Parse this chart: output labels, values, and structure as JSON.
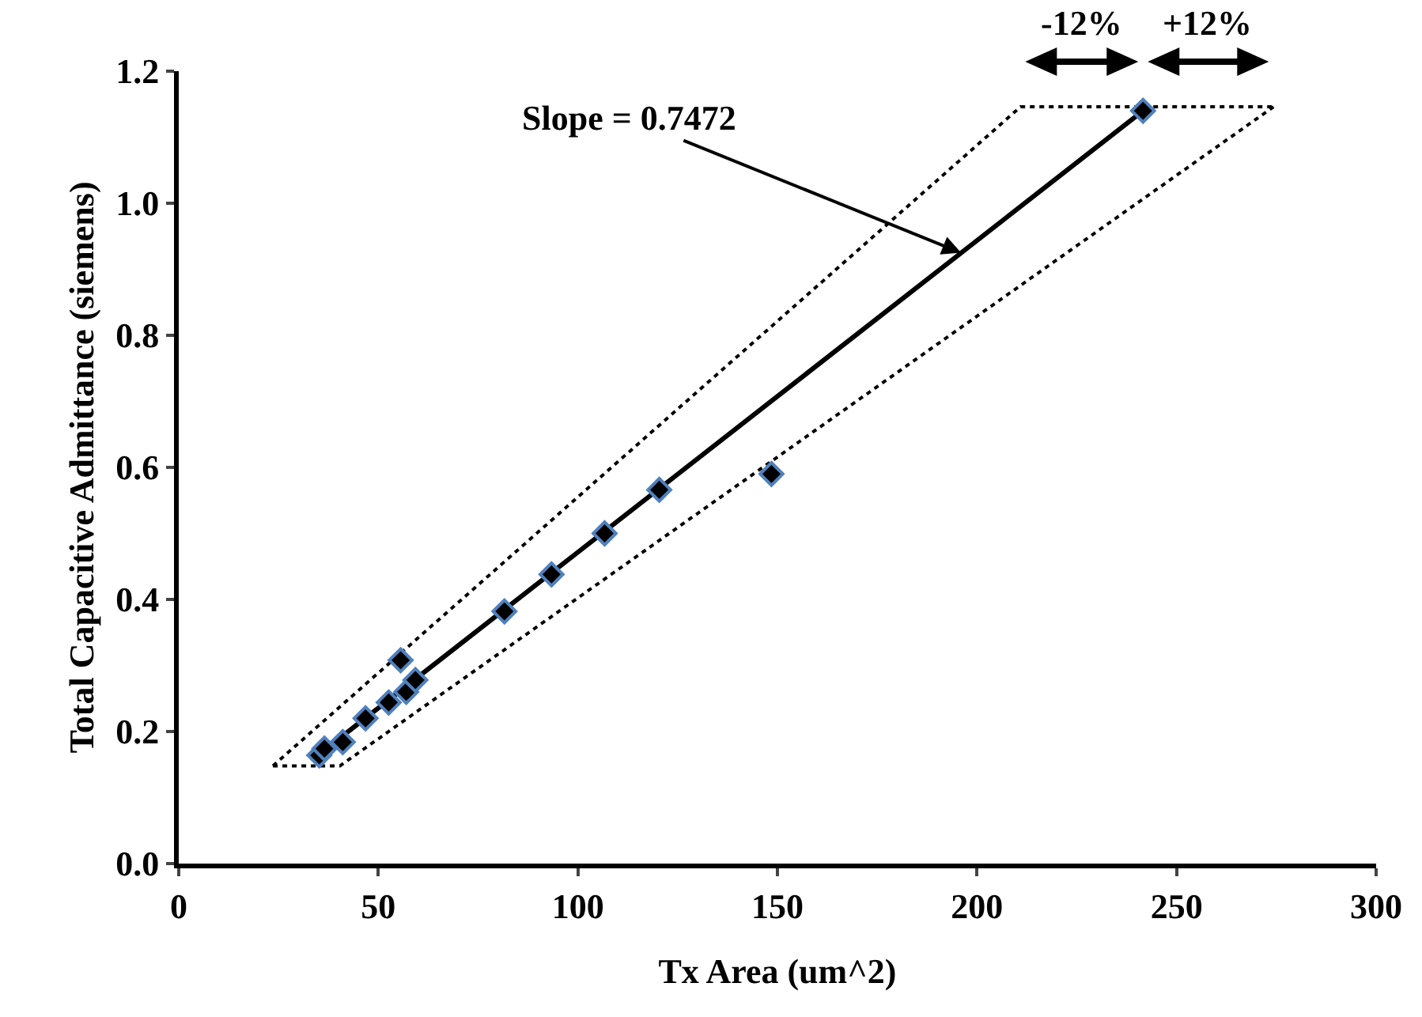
{
  "chart_data": {
    "type": "scatter",
    "xlabel": "Tx Area (um^2)",
    "ylabel": "Total Capacitive Admittance (siemens)",
    "xlim": [
      0,
      300
    ],
    "xticks": [
      0,
      50,
      100,
      150,
      200,
      250,
      300
    ],
    "ylim": [
      0,
      1.2
    ],
    "yticks": [
      {
        "value": 0,
        "label": "0.0"
      },
      {
        "value": 0.2,
        "label": "0.2"
      },
      {
        "value": 0.4,
        "label": "0.4"
      },
      {
        "value": 0.6,
        "label": "0.6"
      },
      {
        "value": 0.8,
        "label": "0.8"
      },
      {
        "value": 1.0,
        "label": "1.0"
      },
      {
        "value": 1.2,
        "label": "1.2"
      }
    ],
    "grid": false,
    "marker": "diamond",
    "series": [
      {
        "type": "line",
        "color": "#000000",
        "line_style": "dotted",
        "marker": "none",
        "x": [
          23.6,
          210.9,
          274.3
        ],
        "values": [
          0.148,
          1.146,
          1.146
        ]
      },
      {
        "type": "line",
        "color": "#000000",
        "line_style": "dotted",
        "marker": "none",
        "x": [
          23.6,
          40.4,
          274.3
        ],
        "values": [
          0.148,
          0.148,
          1.146
        ]
      },
      {
        "type": "line",
        "color": "#000000",
        "line_style": "solid",
        "marker": "none",
        "x": [
          34,
          241.6
        ],
        "values": [
          0.16,
          1.14
        ]
      },
      {
        "color": "#000000",
        "x": [
          35.2,
          36.5,
          41.1,
          46.8,
          52.6,
          55.6,
          57,
          59.3,
          81.6,
          93.4,
          106.7,
          120.4,
          148.5,
          241.6
        ],
        "values": [
          0.164,
          0.174,
          0.184,
          0.22,
          0.244,
          0.308,
          0.26,
          0.278,
          0.382,
          0.438,
          0.5,
          0.566,
          0.59,
          1.14
        ]
      }
    ],
    "annotations": [
      {
        "text": "Slope = 0.7472",
        "x": 196,
        "y": 0.925
      },
      "-12%",
      "+12%"
    ]
  }
}
